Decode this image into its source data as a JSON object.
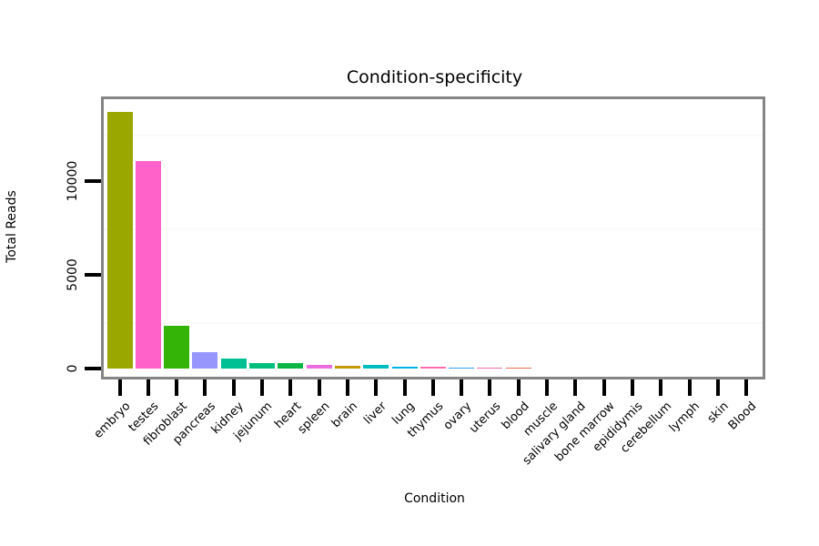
{
  "title": "Condition-specificity",
  "axes": {
    "x_label": "Condition",
    "y_label": "Total Reads",
    "y_tick_labels": [
      "0",
      "5000",
      "10000"
    ]
  },
  "style": {
    "panel_border_color": "#858585",
    "minor_grid_color": "#fafafa",
    "tick_color": "#000000",
    "text_color": "#000000",
    "background_color": "#ffffff"
  },
  "chart_data": {
    "type": "bar",
    "title": "Condition-specificity",
    "xlabel": "Condition",
    "ylabel": "Total Reads",
    "ylim": [
      -440,
      14370
    ],
    "y_ticks": [
      0,
      5000,
      10000
    ],
    "minor_gridlines": [
      2500,
      7500,
      12500
    ],
    "grid": "faint horizontal minor gridlines only",
    "legend": "none",
    "categories": [
      "embryo",
      "testes",
      "fibroblast",
      "pancreas",
      "kidney",
      "jejunum",
      "heart",
      "spleen",
      "brain",
      "liver",
      "lung",
      "thymus",
      "ovary",
      "uterus",
      "blood",
      "muscle",
      "salivary gland",
      "bone marrow",
      "epididymis",
      "cerebellum",
      "lymph",
      "skin",
      "Blood"
    ],
    "values": [
      13700,
      11050,
      2280,
      870,
      530,
      310,
      270,
      190,
      130,
      170,
      90,
      75,
      65,
      55,
      45,
      0,
      0,
      0,
      0,
      0,
      0,
      0,
      0
    ],
    "colors": [
      "#9AA700",
      "#FF62C9",
      "#33B407",
      "#9696FC",
      "#00C094",
      "#00BE7C",
      "#0CB643",
      "#EE6CE2",
      "#C49A00",
      "#00BDC3",
      "#00B3E5",
      "#FF6CAB",
      "#3B9EEC",
      "#F070A8",
      "#EE6A59",
      "#CCCCCC",
      "#CCCCCC",
      "#CCCCCC",
      "#CCCCCC",
      "#CCCCCC",
      "#CCCCCC",
      "#CCCCCC",
      "#CCCCCC"
    ]
  }
}
